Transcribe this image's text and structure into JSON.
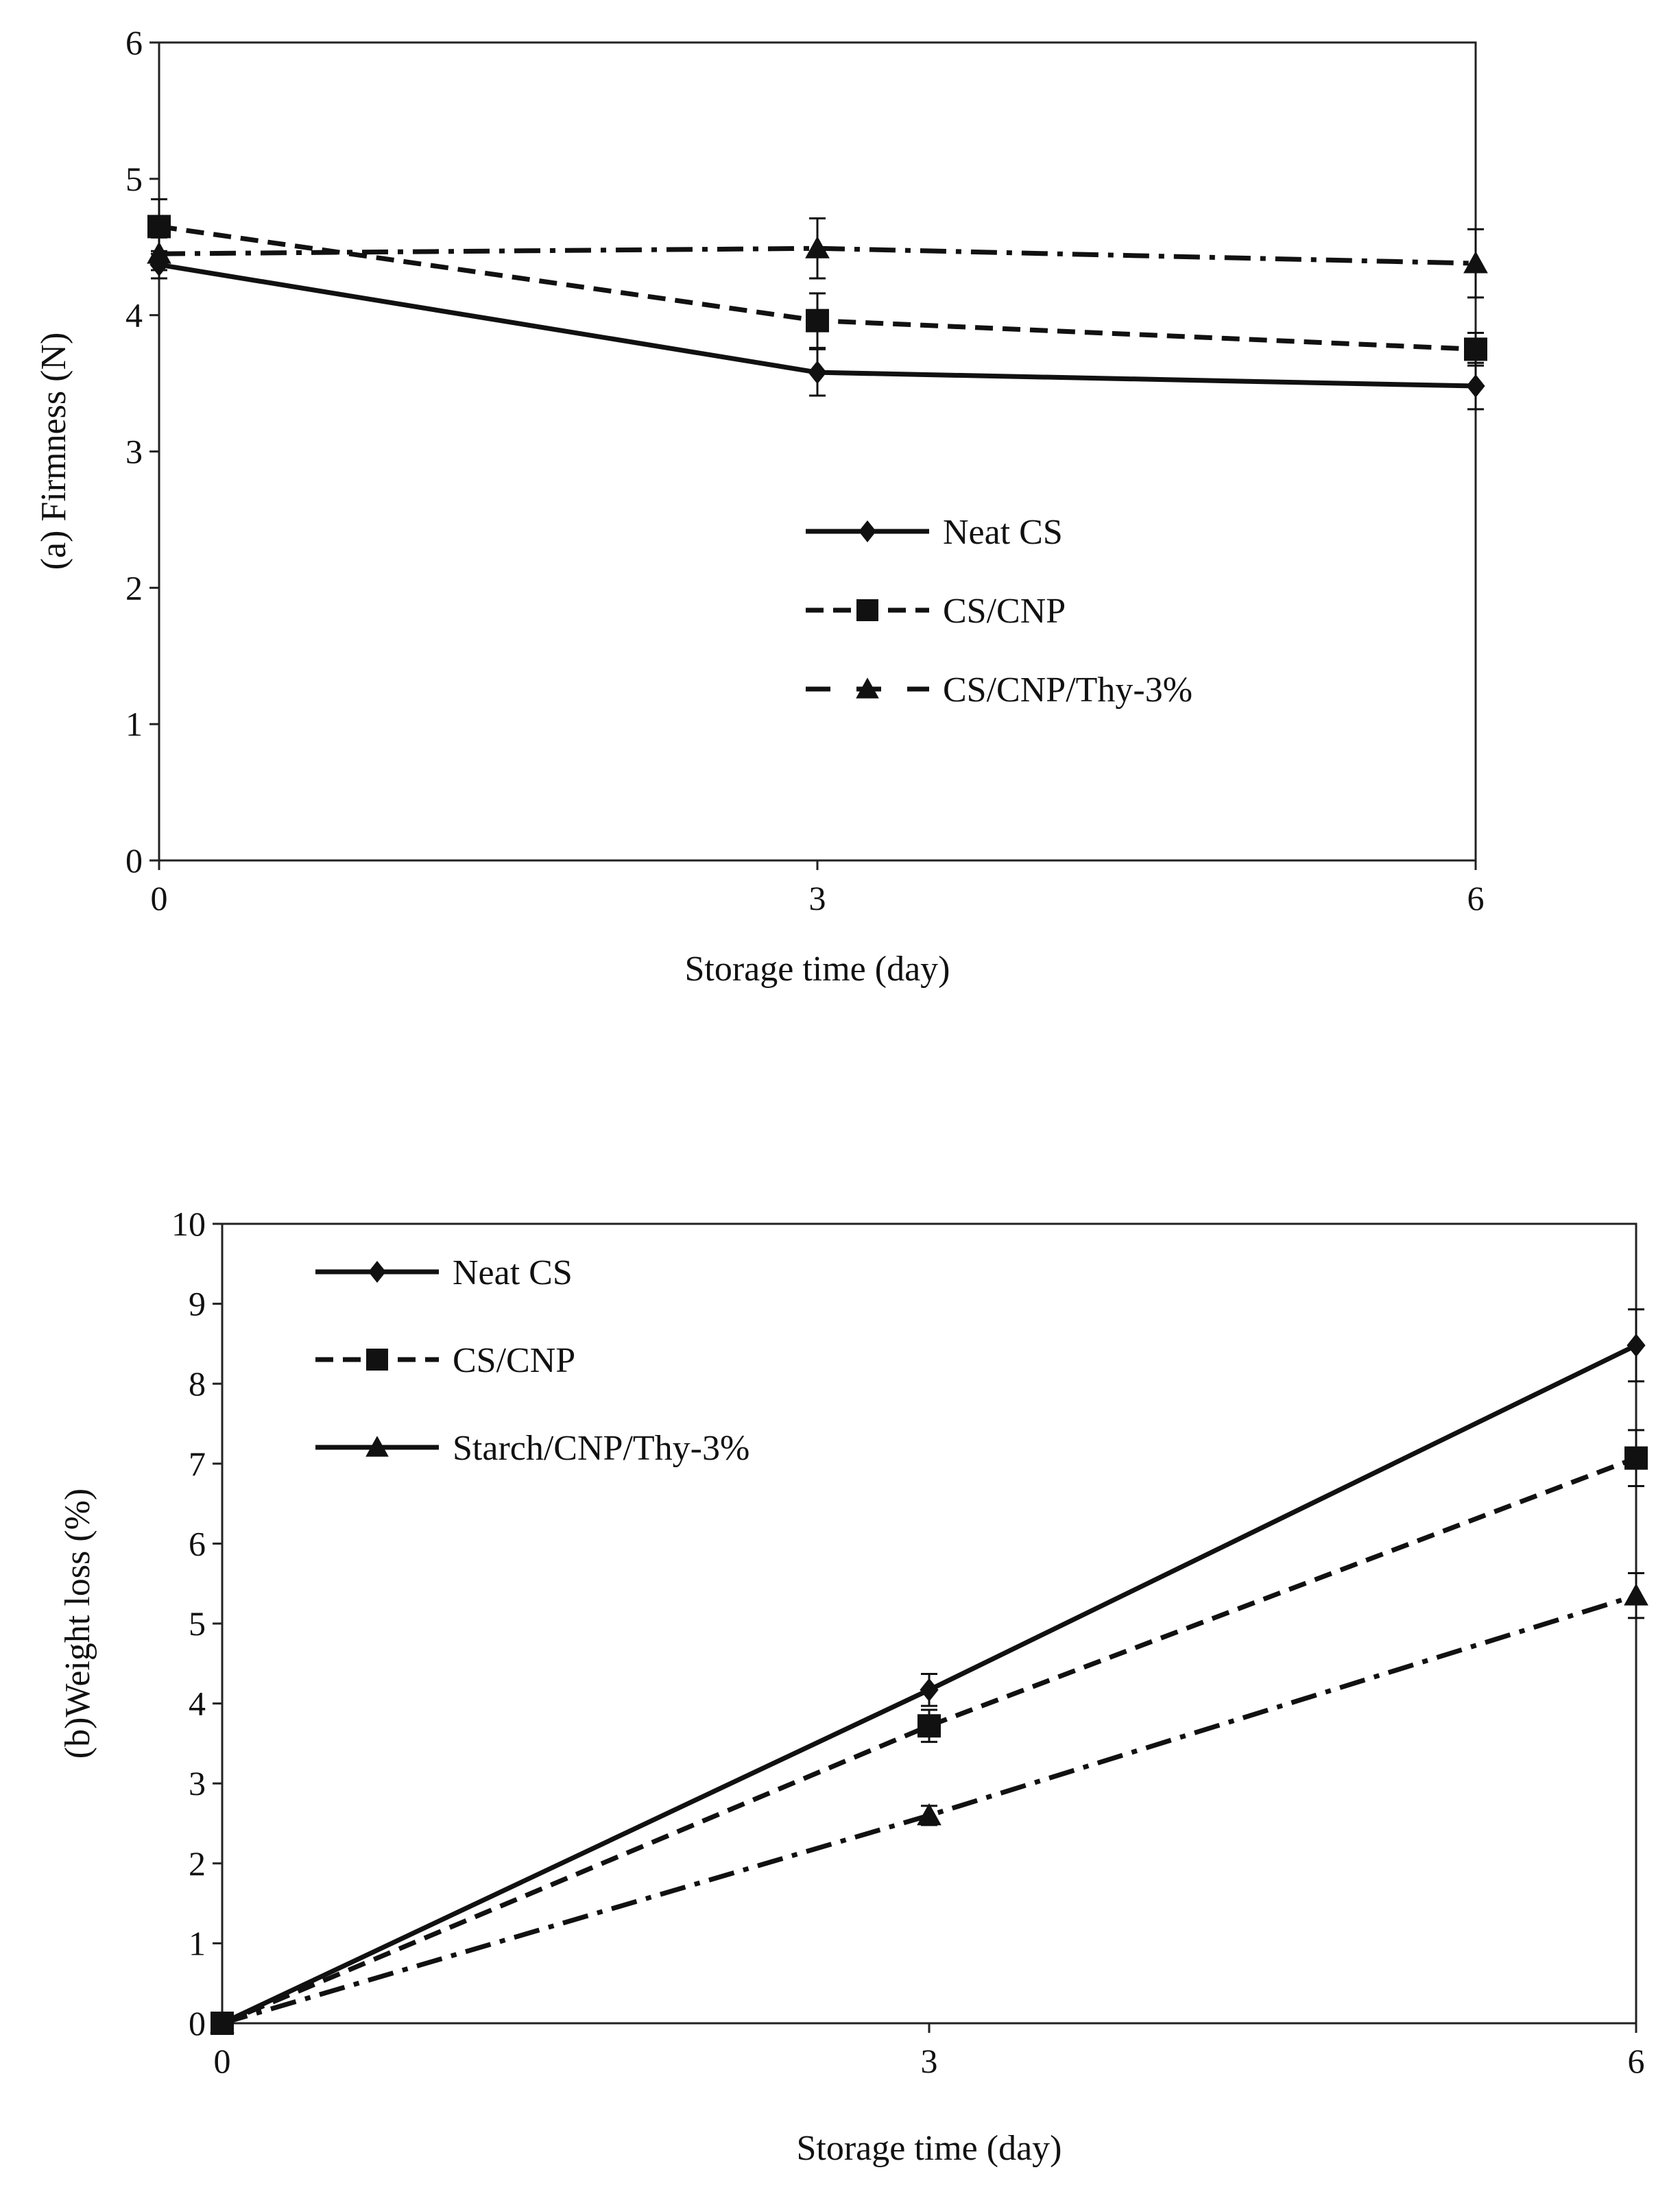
{
  "chart_data": [
    {
      "panel": "(a)",
      "type": "line",
      "xlabel": "Storage time (day)",
      "ylabel": "(a) Firmness (N)",
      "x": [
        0,
        3,
        6
      ],
      "xticks": [
        "0",
        "3",
        "6"
      ],
      "yticks": [
        "0",
        "1",
        "2",
        "3",
        "4",
        "5",
        "6"
      ],
      "xlim": [
        0,
        6
      ],
      "ylim": [
        0,
        6
      ],
      "grid": false,
      "legend_position": "center-right",
      "series": [
        {
          "name": "Neat CS",
          "marker": "diamond",
          "line": "solid",
          "values": [
            4.37,
            3.58,
            3.48
          ],
          "errors": [
            0.1,
            0.17,
            0.17
          ]
        },
        {
          "name": "CS/CNP",
          "marker": "square",
          "line": "dashed",
          "values": [
            4.65,
            3.96,
            3.75
          ],
          "errors": [
            0.2,
            0.2,
            0.12
          ]
        },
        {
          "name": "CS/CNP/Thy-3%",
          "marker": "triangle",
          "line": "dash-dot",
          "values": [
            4.45,
            4.49,
            4.38
          ],
          "errors": [
            0.12,
            0.22,
            0.25
          ]
        }
      ]
    },
    {
      "panel": "(b)",
      "type": "line",
      "xlabel": "Storage time (day)",
      "ylabel": "(b)Weight loss (%)",
      "x": [
        0,
        3,
        6
      ],
      "xticks": [
        "0",
        "3",
        "6"
      ],
      "yticks": [
        "0",
        "1",
        "2",
        "3",
        "4",
        "5",
        "6",
        "7",
        "8",
        "9",
        "10"
      ],
      "xlim": [
        0,
        6
      ],
      "ylim": [
        0,
        10
      ],
      "grid": false,
      "legend_position": "top-left",
      "series": [
        {
          "name": "Neat CS",
          "marker": "diamond",
          "line": "solid",
          "values": [
            0,
            4.17,
            8.48
          ],
          "errors": [
            0,
            0.2,
            0.45
          ]
        },
        {
          "name": "CS/CNP",
          "marker": "square",
          "line": "dashed",
          "values": [
            0,
            3.72,
            7.07
          ],
          "errors": [
            0,
            0.2,
            0.35
          ]
        },
        {
          "name": "Starch/CNP/Thy-3%",
          "marker": "triangle",
          "line": "dash-dot",
          "values": [
            0,
            2.6,
            5.35
          ],
          "errors": [
            0,
            0.12,
            0.28
          ]
        }
      ]
    }
  ]
}
